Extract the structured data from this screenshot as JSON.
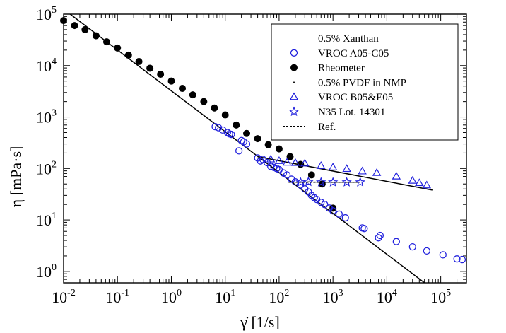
{
  "chart_data": {
    "type": "scatter",
    "xlabel": "γ̇  [1/s]",
    "ylabel": "η [mPa·s]",
    "x_scale": "log",
    "y_scale": "log",
    "xlim": [
      0.01,
      300000
    ],
    "ylim": [
      0.6,
      100000
    ],
    "grid": false,
    "legend_position": "top-right",
    "x_ticks": [
      {
        "base": "10",
        "exp": "-2",
        "value": 0.01
      },
      {
        "base": "10",
        "exp": "-1",
        "value": 0.1
      },
      {
        "base": "10",
        "exp": "0",
        "value": 1
      },
      {
        "base": "10",
        "exp": "1",
        "value": 10
      },
      {
        "base": "10",
        "exp": "2",
        "value": 100
      },
      {
        "base": "10",
        "exp": "3",
        "value": 1000
      },
      {
        "base": "10",
        "exp": "4",
        "value": 10000
      },
      {
        "base": "10",
        "exp": "5",
        "value": 100000
      }
    ],
    "y_ticks": [
      {
        "base": "10",
        "exp": "0",
        "value": 1
      },
      {
        "base": "10",
        "exp": "1",
        "value": 10
      },
      {
        "base": "10",
        "exp": "2",
        "value": 100
      },
      {
        "base": "10",
        "exp": "3",
        "value": 1000
      },
      {
        "base": "10",
        "exp": "4",
        "value": 10000
      },
      {
        "base": "10",
        "exp": "5",
        "value": 100000
      }
    ],
    "legend": [
      {
        "label": "0.5% Xanthan",
        "marker": "none"
      },
      {
        "label": "VROC A05-C05",
        "marker": "open-circle"
      },
      {
        "label": "Rheometer",
        "marker": "filled-circle"
      },
      {
        "label": "0.5% PVDF in NMP",
        "marker": "dot"
      },
      {
        "label": "VROC B05&E05",
        "marker": "open-triangle"
      },
      {
        "label": "N35 Lot. 14301",
        "marker": "star"
      },
      {
        "label": "Ref.",
        "marker": "dashed-line"
      }
    ],
    "colors": {
      "blue": "#2222dd",
      "black": "#000000"
    },
    "series": [
      {
        "name": "Rheometer",
        "marker": "filled-circle",
        "color": "#000000",
        "points": [
          [
            0.01,
            75000
          ],
          [
            0.016,
            60000
          ],
          [
            0.025,
            50000
          ],
          [
            0.04,
            38000
          ],
          [
            0.063,
            29000
          ],
          [
            0.1,
            22000
          ],
          [
            0.16,
            16000
          ],
          [
            0.25,
            12000
          ],
          [
            0.4,
            8900
          ],
          [
            0.63,
            6800
          ],
          [
            1.0,
            5000
          ],
          [
            1.6,
            3600
          ],
          [
            2.5,
            2700
          ],
          [
            4.0,
            2000
          ],
          [
            6.3,
            1500
          ],
          [
            10,
            1100
          ],
          [
            16,
            700
          ],
          [
            25,
            480
          ],
          [
            40,
            380
          ],
          [
            63,
            290
          ],
          [
            100,
            240
          ],
          [
            160,
            170
          ],
          [
            250,
            120
          ],
          [
            400,
            75
          ],
          [
            630,
            50
          ],
          [
            1000,
            17
          ]
        ]
      },
      {
        "name": "VROC A05-C05",
        "marker": "open-circle",
        "color": "#2222dd",
        "points": [
          [
            6.5,
            650
          ],
          [
            7.5,
            620
          ],
          [
            9,
            560
          ],
          [
            11,
            500
          ],
          [
            12,
            470
          ],
          [
            13,
            460
          ],
          [
            18,
            220
          ],
          [
            20,
            350
          ],
          [
            22,
            330
          ],
          [
            25,
            300
          ],
          [
            40,
            160
          ],
          [
            45,
            140
          ],
          [
            50,
            150
          ],
          [
            60,
            130
          ],
          [
            70,
            110
          ],
          [
            80,
            105
          ],
          [
            90,
            100
          ],
          [
            100,
            95
          ],
          [
            120,
            82
          ],
          [
            140,
            75
          ],
          [
            170,
            62
          ],
          [
            200,
            55
          ],
          [
            250,
            48
          ],
          [
            300,
            40
          ],
          [
            350,
            35
          ],
          [
            400,
            30
          ],
          [
            450,
            27
          ],
          [
            500,
            25
          ],
          [
            600,
            22
          ],
          [
            700,
            20
          ],
          [
            850,
            17
          ],
          [
            1000,
            15
          ],
          [
            1300,
            13
          ],
          [
            1700,
            11
          ],
          [
            3500,
            7.0
          ],
          [
            3800,
            6.8
          ],
          [
            7000,
            4.5
          ],
          [
            7500,
            5.0
          ],
          [
            15000,
            3.8
          ],
          [
            30000,
            3.0
          ],
          [
            55000,
            2.5
          ],
          [
            110000,
            2.1
          ],
          [
            200000,
            1.75
          ],
          [
            250000,
            1.7
          ]
        ]
      },
      {
        "name": "VROC B05&E05",
        "marker": "open-triangle",
        "color": "#2222dd",
        "points": [
          [
            70,
            150
          ],
          [
            100,
            140
          ],
          [
            140,
            130
          ],
          [
            200,
            128
          ],
          [
            300,
            125
          ],
          [
            600,
            112
          ],
          [
            1000,
            105
          ],
          [
            1800,
            98
          ],
          [
            3500,
            88
          ],
          [
            6500,
            82
          ],
          [
            15000,
            70
          ],
          [
            30000,
            58
          ],
          [
            40000,
            52
          ],
          [
            55000,
            47
          ]
        ]
      },
      {
        "name": "N35 Lot. 14301",
        "marker": "star",
        "color": "#2222dd",
        "points": [
          [
            250,
            54
          ],
          [
            350,
            55
          ],
          [
            600,
            54
          ],
          [
            1000,
            54
          ],
          [
            1800,
            54
          ],
          [
            3200,
            54
          ]
        ]
      },
      {
        "name": "Ref.",
        "marker": "dashed-line",
        "color": "#000000",
        "points": [
          [
            150,
            54
          ],
          [
            3200,
            54
          ]
        ]
      }
    ],
    "fit_lines": [
      {
        "color": "#000000",
        "points": [
          [
            0.01,
            125000
          ],
          [
            50000,
            0.6
          ]
        ]
      },
      {
        "color": "#000000",
        "points": [
          [
            40,
            170
          ],
          [
            70000,
            38
          ]
        ]
      }
    ]
  }
}
